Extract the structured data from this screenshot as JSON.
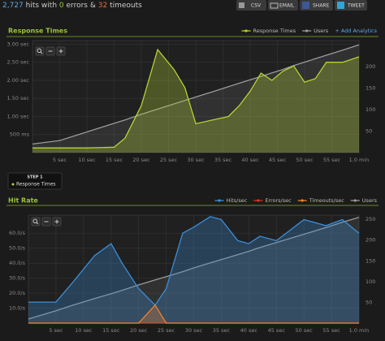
{
  "header": {
    "hits": "2,727",
    "hits_text": "hits with",
    "errors": "0",
    "errors_text": "errors &",
    "timeouts": "32",
    "timeouts_text": "timeouts",
    "buttons": [
      "CSV",
      "EMAIL",
      "SHARE",
      "TWEET"
    ]
  },
  "step": {
    "label": "STEP 1",
    "name": "Response Times"
  },
  "chart_data": [
    {
      "type": "line",
      "title": "Response Times",
      "link": "+ Add Analytics",
      "grid": true,
      "x": [
        0,
        5,
        10,
        15,
        17,
        20,
        23,
        26,
        28,
        30,
        33,
        36,
        38,
        40,
        42,
        44,
        46,
        48,
        50,
        52,
        54,
        57,
        60
      ],
      "xlim": [
        0,
        60
      ],
      "xticks": [
        {
          "value": 5,
          "label": "5 sec"
        },
        {
          "value": 10,
          "label": "10 sec"
        },
        {
          "value": 15,
          "label": "15 sec"
        },
        {
          "value": 20,
          "label": "20 sec"
        },
        {
          "value": 25,
          "label": "25 sec"
        },
        {
          "value": 30,
          "label": "30 sec"
        },
        {
          "value": 35,
          "label": "35 sec"
        },
        {
          "value": 40,
          "label": "40 sec"
        },
        {
          "value": 45,
          "label": "45 sec"
        },
        {
          "value": 50,
          "label": "50 sec"
        },
        {
          "value": 55,
          "label": "55 sec"
        },
        {
          "value": 60,
          "label": "1.0 min"
        }
      ],
      "ylim": [
        0,
        3100
      ],
      "yticks": [
        {
          "value": 500,
          "label": "500 ms"
        },
        {
          "value": 1000,
          "label": "1.00 sec"
        },
        {
          "value": 1500,
          "label": "1.50 sec"
        },
        {
          "value": 2000,
          "label": "2.00 sec"
        },
        {
          "value": 2500,
          "label": "2.50 sec"
        },
        {
          "value": 3000,
          "label": "3.00 sec"
        }
      ],
      "y2lim": [
        0,
        260
      ],
      "y2ticks": [
        50,
        100,
        150,
        200
      ],
      "series": [
        {
          "name": "Response Times",
          "color": "#b5d334",
          "area": true,
          "values": [
            130,
            130,
            130,
            150,
            400,
            1300,
            2850,
            2300,
            1800,
            800,
            900,
            1000,
            1300,
            1700,
            2200,
            2000,
            2250,
            2400,
            1950,
            2050,
            2500,
            2500,
            2650
          ]
        },
        {
          "name": "Users",
          "color": "#9a9a9a",
          "area": true,
          "axis": "y2",
          "values": [
            20,
            28,
            48,
            68,
            76,
            89,
            101,
            113,
            121,
            129,
            141,
            153,
            161,
            169,
            177,
            185,
            193,
            202,
            210,
            218,
            226,
            238,
            250
          ]
        }
      ]
    },
    {
      "type": "line",
      "title": "Hit Rate",
      "grid": true,
      "x": [
        0,
        5,
        8,
        12,
        15,
        17,
        20,
        23,
        25,
        28,
        30,
        33,
        35,
        38,
        40,
        42,
        45,
        50,
        54,
        57,
        60
      ],
      "xlim": [
        0,
        60
      ],
      "xticks": [
        {
          "value": 5,
          "label": "5 sec"
        },
        {
          "value": 10,
          "label": "10 sec"
        },
        {
          "value": 15,
          "label": "15 sec"
        },
        {
          "value": 20,
          "label": "20 sec"
        },
        {
          "value": 25,
          "label": "25 sec"
        },
        {
          "value": 30,
          "label": "30 sec"
        },
        {
          "value": 35,
          "label": "35 sec"
        },
        {
          "value": 40,
          "label": "40 sec"
        },
        {
          "value": 45,
          "label": "45 sec"
        },
        {
          "value": 50,
          "label": "50 sec"
        },
        {
          "value": 55,
          "label": "55 sec"
        },
        {
          "value": 60,
          "label": "1.0 min"
        }
      ],
      "ylim": [
        0,
        72
      ],
      "yticks": [
        {
          "value": 10,
          "label": "10.0/s"
        },
        {
          "value": 20,
          "label": "20.0/s"
        },
        {
          "value": 30,
          "label": "30.0/s"
        },
        {
          "value": 40,
          "label": "40.0/s"
        },
        {
          "value": 50,
          "label": "50.0/s"
        },
        {
          "value": 60,
          "label": "60.0/s"
        }
      ],
      "y2lim": [
        0,
        260
      ],
      "y2ticks": [
        50,
        100,
        150,
        200,
        250
      ],
      "series": [
        {
          "name": "Hits/sec",
          "color": "#3a8ed8",
          "area": true,
          "values": [
            14,
            14,
            27,
            45,
            53,
            40,
            23,
            12,
            23,
            60,
            64,
            71,
            69,
            55,
            53,
            58,
            55,
            69,
            65,
            69,
            60
          ]
        },
        {
          "name": "Errors/sec",
          "color": "#e03030",
          "area": false,
          "values": [
            0,
            0,
            0,
            0,
            0,
            0,
            0,
            0,
            0,
            0,
            0,
            0,
            0,
            0,
            0,
            0,
            0,
            0,
            0,
            0,
            0
          ]
        },
        {
          "name": "Timeouts/sec",
          "color": "#f08030",
          "area": true,
          "values": [
            0,
            0,
            0,
            0,
            0,
            0,
            0,
            12,
            0,
            0,
            0,
            0,
            0,
            0,
            0,
            0,
            0,
            0,
            0,
            0,
            0
          ]
        },
        {
          "name": "Users",
          "color": "#9a9a9a",
          "area": true,
          "axis": "y2",
          "values": [
            10,
            30,
            43,
            59,
            71,
            79,
            92,
            104,
            112,
            124,
            133,
            145,
            153,
            165,
            173,
            182,
            194,
            214,
            230,
            243,
            255
          ]
        }
      ]
    }
  ]
}
